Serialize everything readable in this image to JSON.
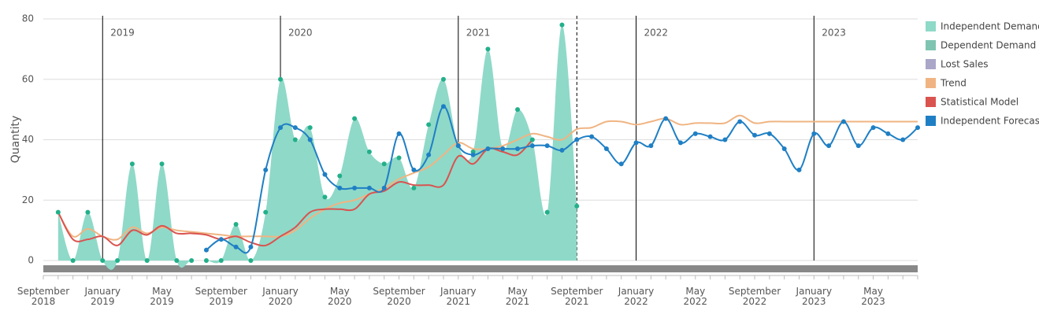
{
  "chart_data": {
    "type": "area-line",
    "y_label": "Quantity",
    "categories": [
      "September 2018",
      null,
      null,
      null,
      "January 2019",
      null,
      null,
      null,
      "May 2019",
      null,
      null,
      null,
      "September 2019",
      null,
      null,
      null,
      "January 2020",
      null,
      null,
      null,
      "May 2020",
      null,
      null,
      null,
      "September 2020",
      null,
      null,
      null,
      "January 2021",
      null,
      null,
      null,
      "May 2021",
      null,
      null,
      null,
      "September 2021",
      null,
      null,
      null,
      "January 2022",
      null,
      null,
      null,
      "May 2022",
      null,
      null,
      null,
      "September 2022",
      null,
      null,
      null,
      "January 2023",
      null,
      null,
      null,
      "May 2023",
      null,
      null,
      null
    ],
    "ylim": [
      0,
      80
    ],
    "yticks": [
      0,
      20,
      40,
      60,
      80
    ],
    "grid": true,
    "year_lines": [
      {
        "category": "January 2019",
        "label": "2019"
      },
      {
        "category": "January 2020",
        "label": "2020"
      },
      {
        "category": "January 2021",
        "label": "2021"
      },
      {
        "category": "January 2022",
        "label": "2022"
      },
      {
        "category": "January 2023",
        "label": "2023"
      }
    ],
    "current_period": "September 2021",
    "legend": "right",
    "series": [
      {
        "name": "Independent Demand",
        "color": "#8fd9c8",
        "marker_color": "#22b08a",
        "style": "area",
        "values": [
          null,
          16,
          0,
          16,
          0,
          0,
          32,
          0,
          32,
          0,
          0,
          0,
          0,
          12,
          0,
          16,
          60,
          40,
          44,
          21,
          28,
          47,
          36,
          32,
          34,
          24,
          45,
          60,
          38,
          36,
          70,
          37,
          50,
          40,
          16,
          78,
          18,
          null,
          null,
          null,
          null,
          null,
          null,
          null,
          null,
          null,
          null,
          null,
          null,
          null,
          null,
          null,
          null,
          null,
          null,
          null,
          null,
          null,
          null,
          null
        ]
      },
      {
        "name": "Dependent Demand",
        "color": "#7fc4b0"
      },
      {
        "name": "Lost Sales",
        "color": "#a9a6c8"
      },
      {
        "name": "Trend",
        "color": "#f0b482",
        "style": "line",
        "values": [
          null,
          16,
          8,
          10.5,
          8,
          7,
          11,
          9,
          11,
          10,
          9.5,
          9,
          8.5,
          8,
          8,
          8,
          8,
          10,
          14,
          17,
          19,
          20,
          22,
          24,
          27,
          29,
          31,
          35,
          39,
          37,
          37,
          38,
          40,
          42,
          41,
          40,
          43.5,
          44,
          46,
          46,
          45,
          46,
          47,
          45,
          45.5,
          45.5,
          45.5,
          48,
          45.5,
          46,
          46,
          46,
          46,
          46,
          46,
          46,
          46,
          46,
          46,
          46
        ]
      },
      {
        "name": "Statistical Model",
        "color": "#d9534f",
        "style": "line",
        "values": [
          null,
          16,
          7,
          7,
          8,
          5,
          10,
          8.5,
          11.5,
          9,
          9,
          8.5,
          7,
          8,
          6,
          5,
          8,
          11,
          16,
          17,
          17,
          17,
          22,
          23,
          26,
          25,
          25,
          25,
          34.5,
          32,
          37,
          36,
          35,
          40,
          null,
          null,
          null,
          null,
          null,
          null,
          null,
          null,
          null,
          null,
          null,
          null,
          null,
          null,
          null,
          null,
          null,
          null,
          null,
          null,
          null,
          null,
          null,
          null,
          null,
          null
        ]
      },
      {
        "name": "Independent Forecast",
        "color": "#1f7fc4",
        "marker_color": "#1f7fc4",
        "style": "line",
        "values": [
          null,
          null,
          null,
          null,
          null,
          null,
          null,
          null,
          null,
          null,
          null,
          3.5,
          7,
          4.5,
          4.5,
          30,
          44,
          44,
          40,
          28.5,
          24,
          24,
          24,
          24,
          42,
          30,
          35,
          51,
          38,
          35,
          37,
          37,
          37,
          38,
          38,
          36.5,
          40,
          41,
          37,
          32,
          39,
          38,
          47,
          39,
          42,
          41,
          40,
          46,
          41.5,
          42,
          37,
          30,
          42,
          38,
          46,
          38,
          44,
          42,
          40,
          44
        ]
      }
    ]
  }
}
